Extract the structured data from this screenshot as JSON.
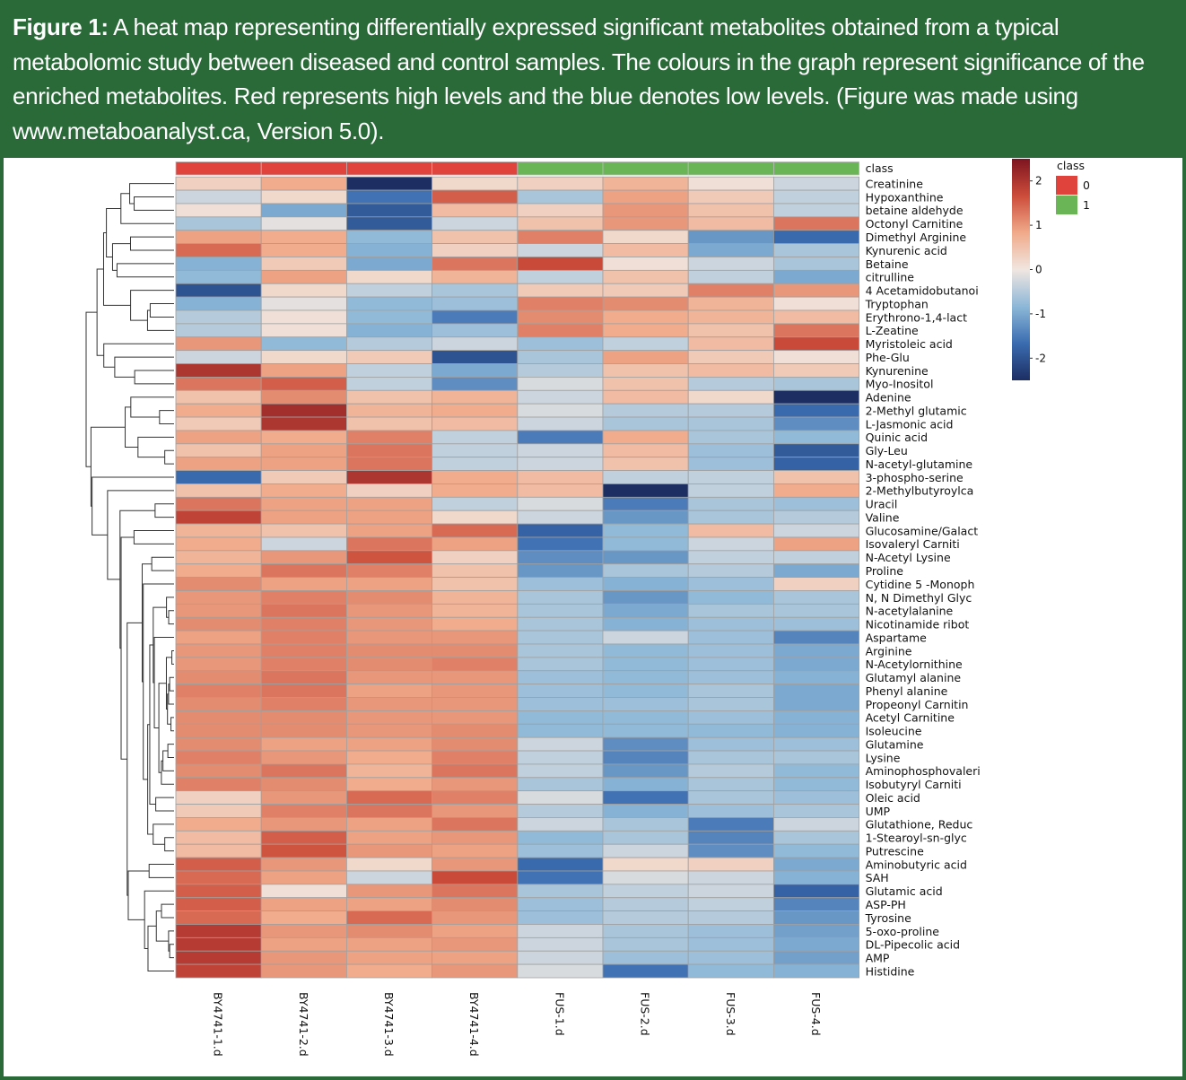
{
  "caption": {
    "label": "Figure 1:",
    "text": " A heat map representing differentially expressed significant metabolites obtained from a typical metabolomic study between diseased and control samples. The colours in the graph represent significance of the enriched metabolites. Red represents high levels and the blue denotes low levels. (Figure was made using www.metaboanalyst.ca, Version 5.0)."
  },
  "chart_data": {
    "type": "heatmap",
    "title": "",
    "class_row_label": "class",
    "samples": [
      "BY4741-1.d",
      "BY4741-2.d",
      "BY4741-3.d",
      "BY4741-4.d",
      "FUS-1.d",
      "FUS-2.d",
      "FUS-3.d",
      "FUS-4.d"
    ],
    "sample_classes": [
      "0",
      "0",
      "0",
      "0",
      "1",
      "1",
      "1",
      "1"
    ],
    "class_legend": {
      "title": "class",
      "entries": [
        {
          "label": "0",
          "color": "#e0433c"
        },
        {
          "label": "1",
          "color": "#6ab657"
        }
      ]
    },
    "colorbar": {
      "min": -2.5,
      "max": 2.5,
      "ticks": [
        2,
        1,
        0,
        -1,
        -2
      ],
      "colors": [
        "#1c2e62",
        "#3a6cb0",
        "#8db8d8",
        "#f0e6e0",
        "#f0aa8a",
        "#cc4c3a",
        "#7d1420"
      ]
    },
    "metabolites": [
      "Creatinine",
      "Hypoxanthine",
      "betaine aldehyde",
      "Octonyl Carnitine",
      "Dimethyl Arginine",
      "Kynurenic acid",
      "Betaine",
      "citrulline",
      "4 Acetamidobutanoi",
      "Tryptophan",
      "Erythrono-1,4-lact",
      "L-Zeatine",
      "Myristoleic acid",
      "Phe-Glu",
      "Kynurenine",
      "Myo-Inositol",
      "Adenine",
      "2-Methyl glutamic",
      "L-Jasmonic acid",
      "Quinic acid",
      "Gly-Leu",
      "N-acetyl-glutamine",
      "3-phospho-serine",
      "2-Methylbutyroylca",
      "Uracil",
      "Valine",
      "Glucosamine/Galact",
      "Isovaleryl Carniti",
      "N-Acetyl Lysine",
      "Proline",
      "Cytidine 5 -Monoph",
      "N, N Dimethyl Glyc",
      "N-acetylalanine",
      "Nicotinamide ribot",
      "Aspartame",
      "Arginine",
      "N-Acetylornithine",
      "Glutamyl alanine",
      "Phenyl alanine",
      "Propeonyl Carnitin",
      "Acetyl Carnitine",
      "Isoleucine",
      "Glutamine",
      "Lysine",
      "Aminophosphovaleri",
      "Isobutyryl Carniti",
      "Oleic acid",
      "UMP",
      "Glutathione, Reduc",
      "1-Stearoyl-sn-glyc",
      "Putrescine",
      "Aminobutyric acid",
      "SAH",
      "Glutamic acid",
      "ASP-PH",
      "Tyrosine",
      "5-oxo-proline",
      "DL-Pipecolic acid",
      "AMP",
      "Histidine"
    ],
    "values": [
      [
        0.3,
        0.8,
        -2.5,
        0.2,
        0.3,
        0.7,
        0.1,
        -0.3
      ],
      [
        -0.3,
        0.2,
        -1.6,
        1.5,
        -0.6,
        0.9,
        0.4,
        -0.4
      ],
      [
        0.1,
        -1.0,
        -1.9,
        0.6,
        0.3,
        1.0,
        0.5,
        -0.4
      ],
      [
        -0.6,
        -0.1,
        -1.9,
        -0.3,
        0.5,
        1.0,
        0.6,
        1.3
      ],
      [
        0.9,
        0.8,
        -0.8,
        0.5,
        1.2,
        0.2,
        -1.2,
        -1.7
      ],
      [
        1.4,
        0.8,
        -0.9,
        0.3,
        -0.3,
        0.6,
        -1.0,
        -0.6
      ],
      [
        -0.9,
        0.4,
        -1.0,
        1.3,
        1.7,
        0.1,
        -0.3,
        -0.6
      ],
      [
        -0.8,
        0.9,
        0.2,
        0.7,
        -0.4,
        0.5,
        -0.4,
        -1.0
      ],
      [
        -2.0,
        0.2,
        -0.4,
        -0.6,
        0.4,
        0.4,
        1.2,
        1.0
      ],
      [
        -0.9,
        -0.1,
        -0.8,
        -0.7,
        1.2,
        1.1,
        0.7,
        0.1
      ],
      [
        -0.5,
        0.1,
        -0.8,
        -1.5,
        1.1,
        0.8,
        0.7,
        0.6
      ],
      [
        -0.5,
        0.1,
        -0.9,
        -0.7,
        1.2,
        0.8,
        0.5,
        1.3
      ],
      [
        1.0,
        -0.8,
        -0.5,
        -0.3,
        -0.7,
        -0.4,
        0.6,
        1.7
      ],
      [
        -0.3,
        0.2,
        0.4,
        -2.0,
        -0.6,
        0.9,
        0.4,
        0.1
      ],
      [
        2.0,
        0.9,
        -0.4,
        -1.0,
        -0.5,
        0.5,
        0.6,
        0.4
      ],
      [
        1.3,
        1.5,
        -0.4,
        -1.3,
        -0.2,
        0.5,
        -0.5,
        -0.6
      ],
      [
        0.5,
        1.1,
        0.5,
        0.7,
        -0.3,
        0.6,
        0.2,
        -2.5
      ],
      [
        0.8,
        2.1,
        0.7,
        0.8,
        -0.2,
        -0.5,
        -0.5,
        -1.7
      ],
      [
        0.4,
        2.0,
        0.5,
        0.6,
        -0.3,
        -0.6,
        -0.6,
        -1.3
      ],
      [
        0.9,
        0.8,
        1.2,
        -0.4,
        -1.5,
        0.8,
        -0.6,
        -0.8
      ],
      [
        0.5,
        0.9,
        1.3,
        -0.4,
        -0.3,
        0.6,
        -0.7,
        -1.9
      ],
      [
        0.9,
        0.9,
        1.3,
        -0.4,
        -0.3,
        0.5,
        -0.7,
        -1.8
      ],
      [
        -1.7,
        0.4,
        2.0,
        0.8,
        0.6,
        -0.4,
        -0.4,
        0.5
      ],
      [
        0.5,
        0.8,
        0.3,
        0.8,
        0.6,
        -2.6,
        -0.4,
        0.8
      ],
      [
        1.3,
        0.9,
        0.9,
        -0.4,
        -0.2,
        -1.5,
        -0.6,
        -0.7
      ],
      [
        1.8,
        0.9,
        0.9,
        0.2,
        -0.3,
        -1.2,
        -0.6,
        -0.5
      ],
      [
        0.7,
        0.5,
        0.9,
        1.4,
        -1.8,
        -0.8,
        0.6,
        -0.3
      ],
      [
        0.8,
        -0.3,
        1.3,
        0.9,
        -1.6,
        -0.8,
        -0.3,
        0.9
      ],
      [
        0.7,
        1.0,
        1.6,
        0.3,
        -1.3,
        -1.2,
        -0.4,
        -0.4
      ],
      [
        0.8,
        1.3,
        1.2,
        0.5,
        -1.2,
        -0.6,
        -0.5,
        -1.0
      ],
      [
        1.1,
        0.9,
        0.9,
        0.5,
        -0.7,
        -0.9,
        -0.7,
        0.3
      ],
      [
        1.0,
        1.2,
        1.1,
        0.7,
        -0.6,
        -1.2,
        -0.8,
        -0.6
      ],
      [
        1.0,
        1.3,
        1.0,
        0.7,
        -0.6,
        -1.0,
        -0.6,
        -0.6
      ],
      [
        1.1,
        1.2,
        1.0,
        0.8,
        -0.6,
        -0.9,
        -0.7,
        -0.7
      ],
      [
        0.9,
        1.2,
        1.0,
        1.0,
        -0.6,
        -0.3,
        -0.7,
        -1.4
      ],
      [
        1.0,
        1.2,
        1.1,
        1.1,
        -0.6,
        -0.8,
        -0.7,
        -1.0
      ],
      [
        1.0,
        1.2,
        1.1,
        1.2,
        -0.6,
        -0.8,
        -0.7,
        -1.0
      ],
      [
        1.1,
        1.3,
        1.0,
        1.0,
        -0.7,
        -0.8,
        -0.7,
        -0.9
      ],
      [
        1.2,
        1.3,
        0.9,
        1.0,
        -0.7,
        -0.8,
        -0.6,
        -1.0
      ],
      [
        1.1,
        1.2,
        1.0,
        1.0,
        -0.7,
        -0.7,
        -0.6,
        -1.0
      ],
      [
        1.1,
        1.1,
        1.0,
        1.0,
        -0.8,
        -0.8,
        -0.7,
        -0.9
      ],
      [
        1.1,
        1.1,
        1.0,
        1.1,
        -0.8,
        -0.8,
        -0.8,
        -0.9
      ],
      [
        1.1,
        0.9,
        0.9,
        1.1,
        -0.3,
        -1.3,
        -0.7,
        -0.7
      ],
      [
        1.2,
        1.0,
        0.8,
        1.2,
        -0.4,
        -1.4,
        -0.6,
        -0.6
      ],
      [
        1.1,
        1.3,
        0.7,
        1.3,
        -0.4,
        -1.2,
        -0.5,
        -0.8
      ],
      [
        1.2,
        1.1,
        0.8,
        1.0,
        -0.6,
        -0.9,
        -0.6,
        -0.8
      ],
      [
        0.3,
        1.0,
        1.4,
        1.2,
        -0.2,
        -1.6,
        -0.6,
        -0.7
      ],
      [
        0.4,
        1.2,
        1.3,
        1.0,
        -0.5,
        -0.9,
        -0.7,
        -0.6
      ],
      [
        0.8,
        1.0,
        0.9,
        1.3,
        -0.3,
        -0.6,
        -1.5,
        -0.3
      ],
      [
        0.6,
        1.5,
        0.9,
        1.0,
        -0.8,
        -0.6,
        -1.4,
        -0.6
      ],
      [
        0.6,
        1.6,
        1.0,
        0.9,
        -0.7,
        -0.3,
        -1.3,
        -0.8
      ],
      [
        1.5,
        1.0,
        0.2,
        1.0,
        -1.7,
        0.2,
        0.3,
        -1.0
      ],
      [
        1.4,
        0.9,
        -0.3,
        1.7,
        -1.6,
        -0.2,
        -0.3,
        -0.9
      ],
      [
        1.5,
        0.1,
        1.0,
        1.3,
        -0.6,
        -0.4,
        -0.3,
        -1.8
      ],
      [
        1.5,
        0.9,
        0.9,
        1.1,
        -0.7,
        -0.5,
        -0.4,
        -1.4
      ],
      [
        1.4,
        0.8,
        1.4,
        1.0,
        -0.7,
        -0.5,
        -0.5,
        -1.2
      ],
      [
        1.9,
        1.0,
        1.1,
        0.9,
        -0.3,
        -0.6,
        -0.7,
        -1.1
      ],
      [
        1.9,
        0.9,
        0.9,
        1.0,
        -0.3,
        -0.6,
        -0.7,
        -1.0
      ],
      [
        1.9,
        1.0,
        0.9,
        0.9,
        -0.3,
        -0.7,
        -0.7,
        -1.1
      ],
      [
        1.8,
        1.0,
        0.8,
        1.0,
        -0.2,
        -1.6,
        -0.8,
        -0.9
      ]
    ]
  }
}
